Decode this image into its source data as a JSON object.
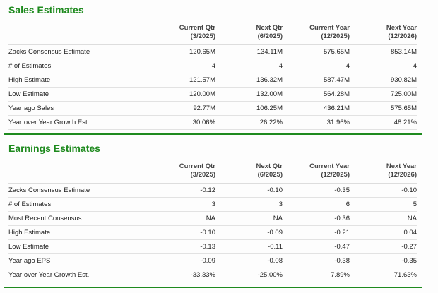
{
  "columns": [
    {
      "line1": "Current Qtr",
      "line2": "(3/2025)"
    },
    {
      "line1": "Next Qtr",
      "line2": "(6/2025)"
    },
    {
      "line1": "Current Year",
      "line2": "(12/2025)"
    },
    {
      "line1": "Next Year",
      "line2": "(12/2026)"
    }
  ],
  "sales": {
    "title": "Sales Estimates",
    "rows": [
      {
        "label": "Zacks Consensus Estimate",
        "values": [
          "120.65M",
          "134.11M",
          "575.65M",
          "853.14M"
        ]
      },
      {
        "label": "# of Estimates",
        "values": [
          "4",
          "4",
          "4",
          "4"
        ]
      },
      {
        "label": "High Estimate",
        "values": [
          "121.57M",
          "136.32M",
          "587.47M",
          "930.82M"
        ]
      },
      {
        "label": "Low Estimate",
        "values": [
          "120.00M",
          "132.00M",
          "564.28M",
          "725.00M"
        ]
      },
      {
        "label": "Year ago Sales",
        "values": [
          "92.77M",
          "106.25M",
          "436.21M",
          "575.65M"
        ]
      },
      {
        "label": "Year over Year Growth Est.",
        "values": [
          "30.06%",
          "26.22%",
          "31.96%",
          "48.21%"
        ]
      }
    ]
  },
  "earnings": {
    "title": "Earnings Estimates",
    "rows": [
      {
        "label": "Zacks Consensus Estimate",
        "values": [
          "-0.12",
          "-0.10",
          "-0.35",
          "-0.10"
        ]
      },
      {
        "label": "# of Estimates",
        "values": [
          "3",
          "3",
          "6",
          "5"
        ]
      },
      {
        "label": "Most Recent Consensus",
        "values": [
          "NA",
          "NA",
          "-0.36",
          "NA"
        ]
      },
      {
        "label": "High Estimate",
        "values": [
          "-0.10",
          "-0.09",
          "-0.21",
          "0.04"
        ]
      },
      {
        "label": "Low Estimate",
        "values": [
          "-0.13",
          "-0.11",
          "-0.47",
          "-0.27"
        ]
      },
      {
        "label": "Year ago EPS",
        "values": [
          "-0.09",
          "-0.08",
          "-0.38",
          "-0.35"
        ]
      },
      {
        "label": "Year over Year Growth Est.",
        "values": [
          "-33.33%",
          "-25.00%",
          "7.89%",
          "71.63%"
        ]
      }
    ]
  },
  "colors": {
    "accent": "#1e8a1e"
  }
}
